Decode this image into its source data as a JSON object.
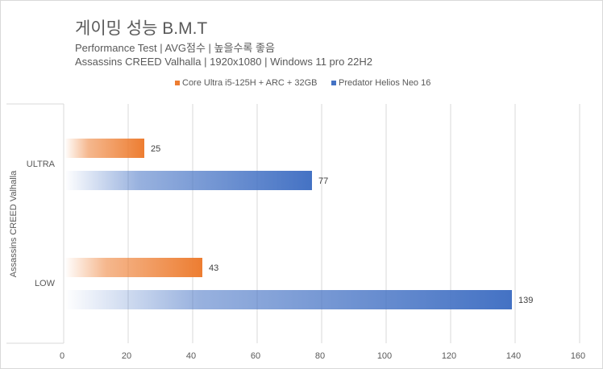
{
  "chart_data": {
    "type": "bar",
    "orientation": "horizontal",
    "title": "게이밍 성능 B.M.T",
    "subtitles": [
      "Performance Test | AVG점수 | 높을수록 좋음",
      "Assassins CREED Valhalla | 1920x1080 | Windows 11 pro 22H2"
    ],
    "group_label": "Assassins CREED Valhalla",
    "categories": [
      "ULTRA",
      "LOW"
    ],
    "series": [
      {
        "name": "Core Ultra i5-125H + ARC + 32GB",
        "color": "#ed7d31",
        "values": [
          25,
          43
        ]
      },
      {
        "name": "Predator Helios Neo 16",
        "color": "#4472c4",
        "values": [
          77,
          139
        ]
      }
    ],
    "xlim": [
      0,
      160
    ],
    "xticks": [
      "0",
      "20",
      "40",
      "60",
      "80",
      "100",
      "120",
      "140",
      "160"
    ],
    "grid": true,
    "legend": "top-right"
  }
}
